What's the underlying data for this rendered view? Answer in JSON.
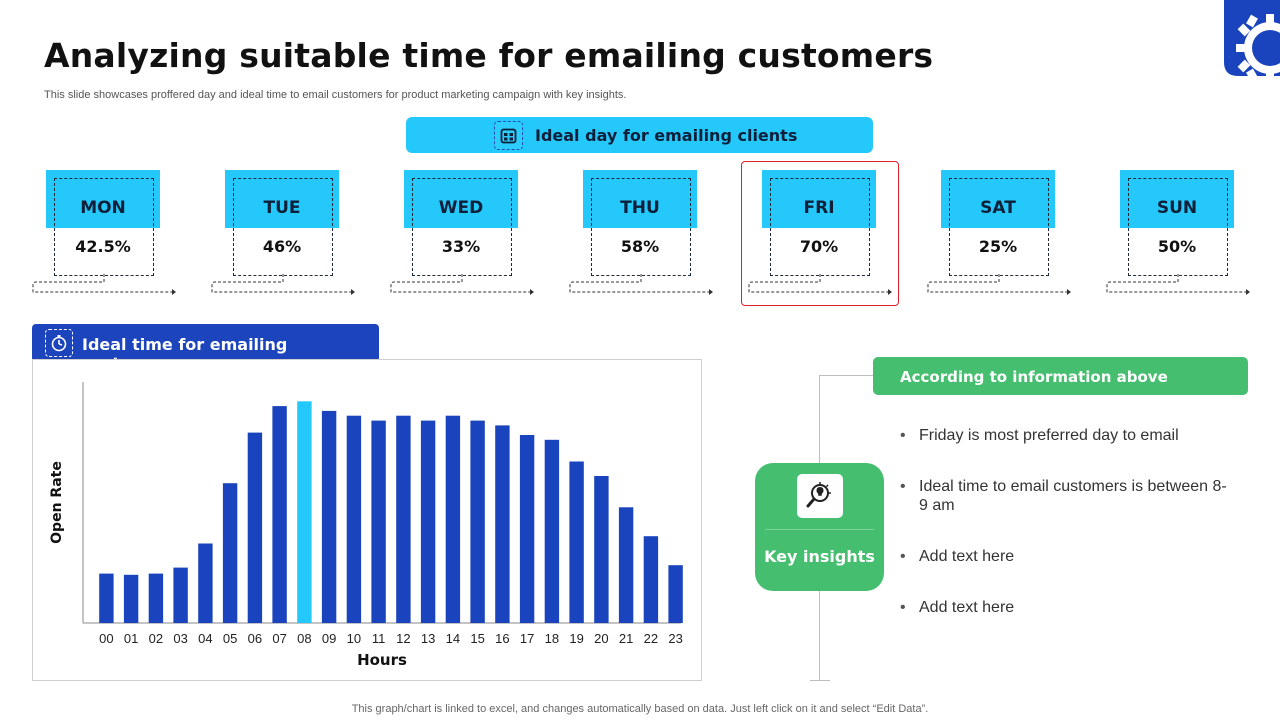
{
  "header": {
    "title": "Analyzing suitable time for emailing customers",
    "subtitle": "This slide showcases proffered day and ideal time to email customers for product marketing campaign with key insights."
  },
  "day_section": {
    "title": "Ideal day for emailing clients",
    "icon": "calendar-icon",
    "highlight_day": "FRI",
    "days": [
      {
        "name": "MON",
        "value": "42.5%"
      },
      {
        "name": "TUE",
        "value": "46%"
      },
      {
        "name": "WED",
        "value": "33%"
      },
      {
        "name": "THU",
        "value": "58%"
      },
      {
        "name": "FRI",
        "value": "70%"
      },
      {
        "name": "SAT",
        "value": "25%"
      },
      {
        "name": "SUN",
        "value": "50%"
      }
    ]
  },
  "time_section": {
    "title": "Ideal time for emailing customers",
    "icon": "stopwatch-icon"
  },
  "chart_data": {
    "type": "bar",
    "xlabel": "Hours",
    "ylabel": "Open Rate",
    "categories": [
      "00",
      "01",
      "02",
      "03",
      "04",
      "05",
      "06",
      "07",
      "08",
      "09",
      "10",
      "11",
      "12",
      "13",
      "14",
      "15",
      "16",
      "17",
      "18",
      "19",
      "20",
      "21",
      "22",
      "23"
    ],
    "values": [
      20.5,
      20,
      20.5,
      23,
      33,
      58,
      79,
      90,
      92,
      88,
      86,
      84,
      86,
      84,
      86,
      84,
      82,
      78,
      76,
      67,
      61,
      48,
      36,
      24
    ],
    "ylim": [
      0,
      100
    ],
    "highlight_category": "08",
    "grid": false,
    "colors": {
      "bar": "#1a44be",
      "highlight": "#25c8fb"
    }
  },
  "insights": {
    "banner": "According to information above",
    "card_label": "Key insights",
    "card_icon": "lightbulb-magnifier-icon",
    "items": [
      "Friday is most preferred day to email",
      "Ideal time to email customers is between 8-9 am",
      "Add text here",
      "Add text here"
    ]
  },
  "footer": "This graph/chart is linked to excel,  and changes automatically based on data. Just left click on it and select “Edit Data”.",
  "colors": {
    "cyan": "#25c8fb",
    "blue": "#1c45bd",
    "green": "#45bf6f",
    "highlight_border": "#e0202a"
  }
}
